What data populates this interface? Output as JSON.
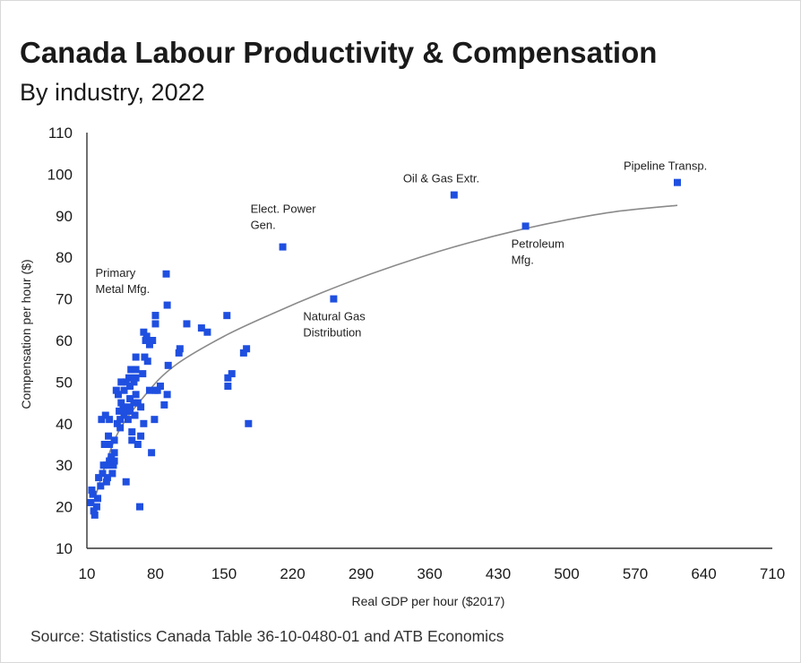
{
  "title": "Canada Labour Productivity & Compensation",
  "subtitle": "By industry, 2022",
  "source": "Source: Statistics Canada Table 36-10-0480-01 and ATB Economics",
  "colors": {
    "point": "#1f4fe0",
    "trend": "#8a8a8a",
    "axis": "#333333"
  },
  "chart_data": {
    "type": "scatter",
    "xlabel": "Real GDP per hour ($2017)",
    "ylabel": "Compensation per hour ($)",
    "xlim": [
      10,
      710
    ],
    "ylim": [
      10,
      110
    ],
    "x_ticks": [
      10,
      80,
      150,
      220,
      290,
      360,
      430,
      500,
      570,
      640,
      710
    ],
    "y_ticks": [
      10,
      20,
      30,
      40,
      50,
      60,
      70,
      80,
      90,
      100,
      110
    ],
    "grid": false,
    "annotations": [
      {
        "lines": [
          "Pipeline Transp."
        ],
        "x": 613,
        "y": 98
      },
      {
        "lines": [
          "Oil & Gas Extr."
        ],
        "x": 385,
        "y": 95
      },
      {
        "lines": [
          "Elect. Power",
          "Gen."
        ],
        "x": 210,
        "y": 82.5
      },
      {
        "lines": [
          "Petroleum",
          "Mfg."
        ],
        "x": 458,
        "y": 87.5
      },
      {
        "lines": [
          "Natural Gas",
          "Distribution"
        ],
        "x": 262,
        "y": 70
      },
      {
        "lines": [
          "Primary",
          "Metal Mfg."
        ],
        "x": 91,
        "y": 76
      }
    ],
    "trend": {
      "x": [
        18,
        40,
        70,
        100,
        150,
        200,
        250,
        300,
        350,
        400,
        450,
        500,
        550,
        613
      ],
      "y": [
        22,
        37,
        47,
        54,
        61,
        66.5,
        71.5,
        76,
        80,
        83.5,
        86.5,
        89,
        91,
        92.5
      ]
    },
    "points": {
      "x": [
        613,
        385,
        210,
        458,
        262,
        91,
        153,
        133,
        158,
        173,
        170,
        154,
        154,
        175,
        112,
        104,
        127,
        105,
        93,
        92,
        92,
        89,
        80,
        82,
        80,
        85,
        80,
        76,
        77,
        79,
        74,
        72,
        80,
        71,
        65,
        68,
        65,
        62,
        60,
        60,
        58,
        59,
        56,
        55,
        54,
        54,
        54,
        53,
        52,
        50,
        49,
        48,
        48,
        47,
        45,
        45,
        44,
        44,
        43,
        42,
        41,
        40,
        38,
        38,
        38,
        37,
        36,
        35,
        33,
        33,
        33,
        32,
        31,
        30,
        30,
        29,
        28,
        27,
        26,
        25,
        24,
        22,
        21,
        20,
        18,
        17,
        16,
        15,
        14,
        54,
        60,
        56,
        60,
        58,
        64,
        67,
        69,
        70,
        74,
        68,
        62,
        50
      ],
      "y": [
        98,
        95,
        82.5,
        87.5,
        70,
        76,
        66,
        62,
        52,
        58,
        57,
        49,
        51,
        40,
        64,
        57,
        63,
        58,
        54,
        68.5,
        47,
        44.5,
        66,
        48,
        64,
        49,
        48,
        33,
        60,
        41,
        59,
        55,
        66,
        61,
        44,
        40,
        37,
        45,
        51,
        47,
        50,
        42,
        38,
        53,
        49,
        44,
        46,
        51,
        41,
        50,
        43,
        42,
        48,
        44,
        45,
        50,
        39,
        41,
        43,
        47,
        40,
        48,
        36,
        33,
        31,
        30,
        28,
        32,
        41,
        35,
        31,
        37,
        27,
        30,
        26,
        42,
        35,
        30,
        28,
        41,
        25,
        27,
        22,
        20,
        18,
        19,
        23,
        24,
        21,
        43,
        53,
        36,
        56,
        45,
        20,
        52,
        56,
        60,
        48,
        62,
        35,
        26
      ]
    }
  }
}
